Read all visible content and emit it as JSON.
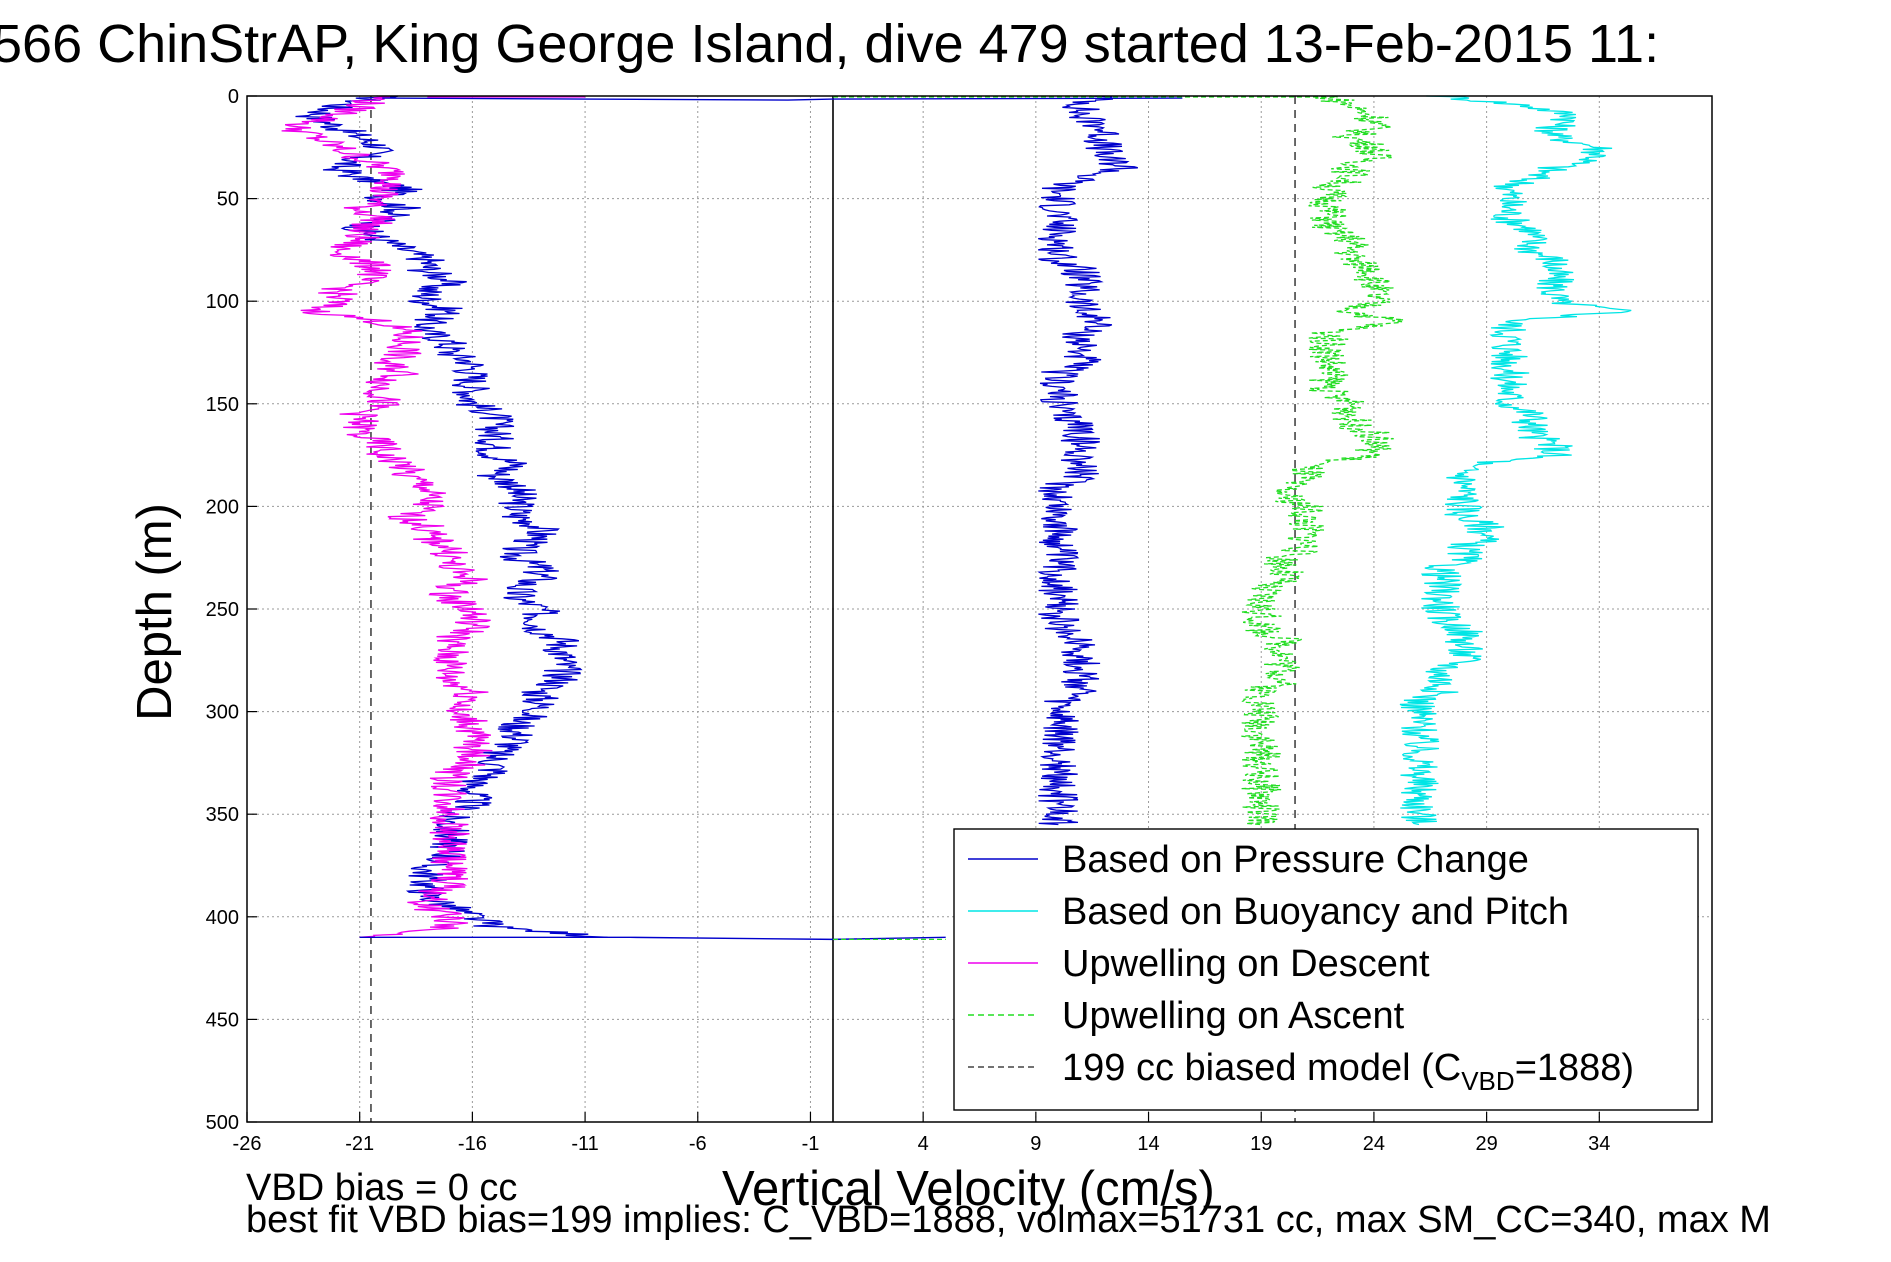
{
  "title": "566 ChinStrAP, King George Island, dive 479 started 13-Feb-2015 11:",
  "footer": {
    "line1": "VBD bias = 0 cc",
    "line2": "best fit VBD bias=199 implies: C_VBD=1888, volmax=51731 cc, max SM_CC=340, max M"
  },
  "chart_data": {
    "type": "line",
    "xlabel": "Vertical Velocity (cm/s)",
    "ylabel": "Depth (m)",
    "xlim": [
      -26,
      39
    ],
    "ylim": [
      0,
      500
    ],
    "y_reversed": true,
    "grid": true,
    "x_ticks": [
      -26,
      -21,
      -16,
      -11,
      -6,
      -1,
      4,
      9,
      14,
      19,
      24,
      29,
      34
    ],
    "y_ticks": [
      0,
      50,
      100,
      150,
      200,
      250,
      300,
      350,
      400,
      450,
      500
    ],
    "reference_lines": [
      {
        "type": "solid",
        "x": 0,
        "color": "#000000"
      },
      {
        "type": "dashed",
        "x": -20.5,
        "color": "#444444"
      },
      {
        "type": "dashed",
        "x": 20.5,
        "color": "#444444"
      }
    ],
    "legend_position": "bottom-right",
    "series": [
      {
        "name": "Based on Pressure Change",
        "color": "#0000cc",
        "style": "solid",
        "segments": [
          {
            "depth": [
              0,
              5,
              10,
              15,
              20,
              25,
              30,
              35,
              40,
              45,
              50,
              55,
              60,
              65,
              70,
              75,
              80,
              85,
              90,
              95,
              100,
              105,
              110,
              115,
              120,
              125,
              130,
              135,
              140,
              145,
              150,
              155,
              160,
              165,
              170,
              175,
              180,
              185,
              190,
              195,
              200,
              205,
              210,
              215,
              220,
              225,
              230,
              235,
              240,
              245,
              250,
              255,
              260,
              265,
              270,
              275,
              280,
              285,
              290,
              295,
              300,
              305,
              310,
              315,
              320,
              325,
              330,
              335,
              340,
              345,
              350,
              355,
              360,
              365,
              370,
              375,
              380,
              385,
              390,
              395,
              400,
              405,
              410
            ],
            "velocity": [
              -20,
              -22,
              -23,
              -22,
              -21,
              -20,
              -21,
              -22,
              -21,
              -19,
              -20,
              -19,
              -20,
              -21,
              -20,
              -19,
              -18,
              -18,
              -17,
              -18,
              -18,
              -17,
              -18,
              -18,
              -17,
              -17,
              -16,
              -16,
              -16,
              -16,
              -16,
              -15,
              -15,
              -15,
              -15,
              -15,
              -14,
              -15,
              -14,
              -14,
              -14,
              -14,
              -13,
              -13,
              -14,
              -14,
              -13,
              -13,
              -14,
              -14,
              -13,
              -13,
              -13,
              -12,
              -12,
              -12,
              -12,
              -12,
              -13,
              -13,
              -13,
              -14,
              -14,
              -14,
              -15,
              -15,
              -15,
              -16,
              -16,
              -16,
              -17,
              -17,
              -17,
              -17,
              -17,
              -18,
              -18,
              -18,
              -18,
              -17,
              -16,
              -15,
              -10
            ]
          },
          {
            "depth": [
              0,
              5,
              10,
              15,
              20,
              25,
              30,
              35,
              40,
              45,
              50,
              55,
              60,
              65,
              70,
              75,
              80,
              85,
              90,
              95,
              100,
              105,
              110,
              115,
              120,
              125,
              130,
              135,
              140,
              145,
              150,
              155,
              160,
              165,
              170,
              175,
              180,
              185,
              190,
              195,
              200,
              205,
              210,
              215,
              220,
              225,
              230,
              235,
              240,
              245,
              250,
              255,
              260,
              265,
              270,
              275,
              280,
              285,
              290,
              295,
              300,
              305,
              310,
              315,
              320,
              325,
              330,
              335,
              340,
              345,
              350,
              355
            ],
            "velocity": [
              12,
              11,
              11,
              12,
              12,
              12,
              12,
              13,
              11,
              10,
              10,
              10,
              10,
              10,
              10,
              10,
              10,
              11,
              11,
              11,
              11,
              11,
              12,
              11,
              11,
              11,
              11,
              10,
              10,
              10,
              10,
              10,
              11,
              11,
              11,
              11,
              11,
              11,
              10,
              10,
              10,
              10,
              10,
              10,
              10,
              10,
              10,
              10,
              10,
              10,
              10,
              10,
              10,
              11,
              11,
              11,
              11,
              11,
              11,
              10,
              10,
              10,
              10,
              10,
              10,
              10,
              10,
              10,
              10,
              10,
              10,
              10
            ]
          }
        ]
      },
      {
        "name": "Based on Buoyancy and Pitch",
        "color": "#00e5e5",
        "style": "solid",
        "segments": [
          {
            "depth": [
              0,
              5,
              10,
              15,
              20,
              25,
              30,
              35,
              40,
              45,
              50,
              55,
              60,
              65,
              70,
              75,
              80,
              85,
              90,
              95,
              100,
              105,
              110,
              115,
              120,
              125,
              130,
              135,
              140,
              145,
              150,
              155,
              160,
              165,
              170,
              175,
              180,
              185,
              190,
              195,
              200,
              205,
              210,
              215,
              220,
              225,
              230,
              235,
              240,
              245,
              250,
              255,
              260,
              265,
              270,
              275,
              280,
              285,
              290,
              295,
              300,
              305,
              310,
              315,
              320,
              325,
              330,
              335,
              340,
              345,
              350,
              355
            ],
            "velocity": [
              27,
              31,
              33,
              32,
              32,
              34,
              34,
              32,
              31,
              30,
              30,
              30,
              30,
              31,
              31,
              31,
              32,
              32,
              32,
              32,
              32,
              35,
              30,
              30,
              30,
              30,
              30,
              30,
              30,
              30,
              30,
              31,
              31,
              31,
              32,
              32,
              28,
              28,
              28,
              28,
              28,
              28,
              29,
              29,
              28,
              28,
              27,
              27,
              27,
              27,
              27,
              27,
              28,
              28,
              28,
              28,
              27,
              27,
              27,
              26,
              26,
              26,
              26,
              26,
              26,
              26,
              26,
              26,
              26,
              26,
              26,
              26
            ]
          }
        ]
      },
      {
        "name": "Upwelling on Descent",
        "color": "#ee00ee",
        "style": "solid",
        "segments": [
          {
            "depth": [
              0,
              5,
              10,
              15,
              20,
              25,
              30,
              35,
              40,
              45,
              50,
              55,
              60,
              65,
              70,
              75,
              80,
              85,
              90,
              95,
              100,
              105,
              110,
              115,
              120,
              125,
              130,
              135,
              140,
              145,
              150,
              155,
              160,
              165,
              170,
              175,
              180,
              185,
              190,
              195,
              200,
              205,
              210,
              215,
              220,
              225,
              230,
              235,
              240,
              245,
              250,
              255,
              260,
              265,
              270,
              275,
              280,
              285,
              290,
              295,
              300,
              305,
              310,
              315,
              320,
              325,
              330,
              335,
              340,
              345,
              350,
              355,
              360,
              365,
              370,
              375,
              380,
              385,
              390,
              395,
              400,
              405,
              410
            ],
            "velocity": [
              -20,
              -21,
              -22,
              -24,
              -23,
              -22,
              -21,
              -20,
              -19,
              -20,
              -20,
              -21,
              -20,
              -21,
              -21,
              -22,
              -21,
              -20,
              -21,
              -22,
              -22,
              -23,
              -20,
              -19,
              -19,
              -19,
              -20,
              -19,
              -20,
              -20,
              -20,
              -21,
              -21,
              -21,
              -20,
              -20,
              -19,
              -19,
              -18,
              -18,
              -18,
              -19,
              -18,
              -18,
              -17,
              -17,
              -17,
              -16,
              -17,
              -17,
              -16,
              -16,
              -16,
              -17,
              -17,
              -17,
              -17,
              -17,
              -16,
              -16,
              -17,
              -16,
              -16,
              -16,
              -16,
              -16,
              -17,
              -17,
              -17,
              -17,
              -17,
              -17,
              -17,
              -17,
              -17,
              -17,
              -17,
              -17,
              -18,
              -18,
              -17,
              -17,
              -21
            ]
          }
        ]
      },
      {
        "name": "Upwelling on Ascent",
        "color": "#22dd22",
        "style": "dashed",
        "segments": [
          {
            "depth": [
              0,
              5,
              10,
              15,
              20,
              25,
              30,
              35,
              40,
              45,
              50,
              55,
              60,
              65,
              70,
              75,
              80,
              85,
              90,
              95,
              100,
              105,
              110,
              115,
              120,
              125,
              130,
              135,
              140,
              145,
              150,
              155,
              160,
              165,
              170,
              175,
              180,
              185,
              190,
              195,
              200,
              205,
              210,
              215,
              220,
              225,
              230,
              235,
              240,
              245,
              250,
              255,
              260,
              265,
              270,
              275,
              280,
              285,
              290,
              295,
              300,
              305,
              310,
              315,
              320,
              325,
              330,
              335,
              340,
              345,
              350,
              355
            ],
            "velocity": [
              22,
              23,
              24,
              24,
              23,
              24,
              24,
              23,
              23,
              22,
              22,
              22,
              22,
              22,
              23,
              23,
              23,
              24,
              24,
              24,
              24,
              23,
              25,
              22,
              22,
              22,
              22,
              22,
              22,
              22,
              23,
              23,
              23,
              24,
              24,
              24,
              21,
              21,
              20,
              20,
              21,
              21,
              21,
              21,
              21,
              20,
              20,
              20,
              19,
              19,
              19,
              19,
              19,
              20,
              20,
              20,
              20,
              20,
              19,
              19,
              19,
              19,
              19,
              19,
              19,
              19,
              19,
              19,
              19,
              19,
              19,
              19
            ]
          }
        ]
      },
      {
        "name": "199 cc biased model (C",
        "subscript": "VBD",
        "suffix": "=1888)",
        "color": "#444444",
        "style": "dashed"
      }
    ]
  }
}
